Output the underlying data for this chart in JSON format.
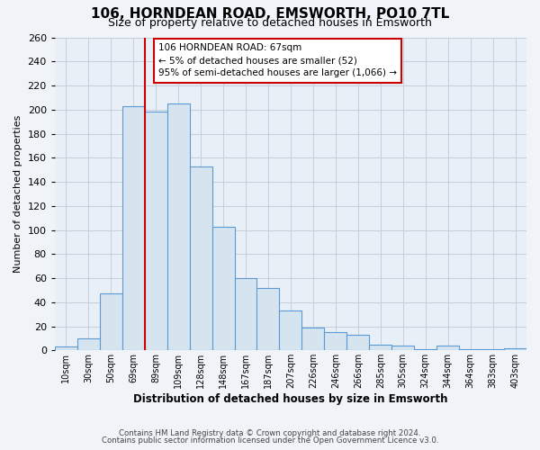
{
  "title": "106, HORNDEAN ROAD, EMSWORTH, PO10 7TL",
  "subtitle": "Size of property relative to detached houses in Emsworth",
  "xlabel": "Distribution of detached houses by size in Emsworth",
  "ylabel": "Number of detached properties",
  "bar_labels": [
    "10sqm",
    "30sqm",
    "50sqm",
    "69sqm",
    "89sqm",
    "109sqm",
    "128sqm",
    "148sqm",
    "167sqm",
    "187sqm",
    "207sqm",
    "226sqm",
    "246sqm",
    "266sqm",
    "285sqm",
    "305sqm",
    "324sqm",
    "344sqm",
    "364sqm",
    "383sqm",
    "403sqm"
  ],
  "bar_values": [
    3,
    10,
    47,
    203,
    198,
    205,
    153,
    103,
    60,
    52,
    33,
    19,
    15,
    13,
    5,
    4,
    1,
    4,
    1,
    1,
    2
  ],
  "bar_color": "#d6e4f0",
  "bar_edge_color": "#5b9bd5",
  "annotation_box_color": "#ffffff",
  "annotation_box_edge": "#cc0000",
  "annotation_line1": "106 HORNDEAN ROAD: 67sqm",
  "annotation_line2": "← 5% of detached houses are smaller (52)",
  "annotation_line3": "95% of semi-detached houses are larger (1,066) →",
  "vline_color": "#cc0000",
  "vline_x_index": 3,
  "ylim": [
    0,
    260
  ],
  "yticks": [
    0,
    20,
    40,
    60,
    80,
    100,
    120,
    140,
    160,
    180,
    200,
    220,
    240,
    260
  ],
  "footer_line1": "Contains HM Land Registry data © Crown copyright and database right 2024.",
  "footer_line2": "Contains public sector information licensed under the Open Government Licence v3.0.",
  "bg_color": "#f0f4f8",
  "plot_bg_color": "#e8eff6",
  "grid_color": "#c5d0dc"
}
